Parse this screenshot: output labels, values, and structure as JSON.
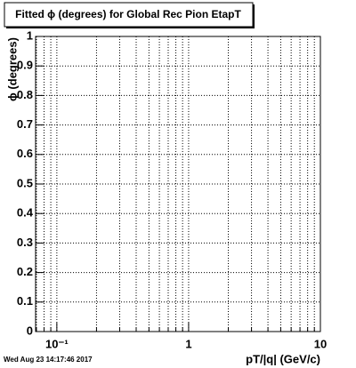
{
  "chart_data": {
    "type": "line",
    "title": "Fitted ϕ (degrees) for Global Rec Pion EtapT",
    "xlabel": "pT/|q| (GeV/c)",
    "ylabel": "ϕ (degrees)",
    "annotation": "Wed Aug 23 14:17:46 2017",
    "series": [],
    "log_x": true,
    "grid": true,
    "xlim": [
      0.069,
      10
    ],
    "xticks": [
      {
        "value": 0.1,
        "label": "10⁻¹"
      },
      1,
      10
    ],
    "xminorticks": [
      0.07,
      0.08,
      0.09,
      0.2,
      0.3,
      0.4,
      0.5,
      0.6,
      0.7,
      0.8,
      0.9,
      2,
      3,
      4,
      5,
      6,
      7,
      8,
      9
    ],
    "ylim": [
      0,
      1
    ],
    "yticks": [
      0,
      0.1,
      0.2,
      0.3,
      0.4,
      0.5,
      0.6,
      0.7,
      0.8,
      0.9,
      1
    ]
  }
}
